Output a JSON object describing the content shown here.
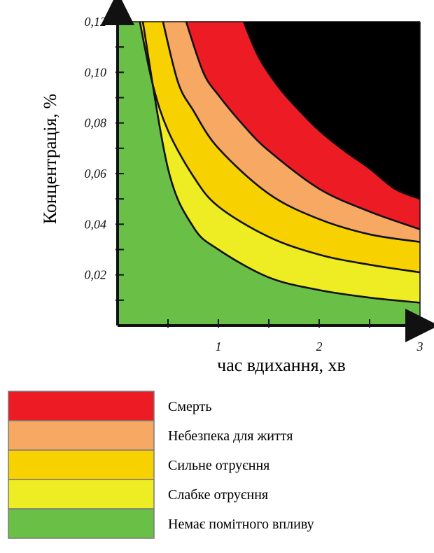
{
  "chart_data": {
    "type": "area",
    "xlabel": "час вдихання, хв",
    "ylabel": "Концентрація, %",
    "xlim": [
      0,
      3
    ],
    "ylim": [
      0,
      0.12
    ],
    "x_ticks": [
      "1",
      "2",
      "3"
    ],
    "y_ticks": [
      "0,02",
      "0,04",
      "0,06",
      "0,08",
      "0,10",
      "0,12"
    ],
    "x_tick_values": [
      1,
      2,
      3
    ],
    "y_tick_values": [
      0.02,
      0.04,
      0.06,
      0.08,
      0.1,
      0.12
    ],
    "x_minor_step": 0.5,
    "y_minor_step": 0.01,
    "boundaries": [
      {
        "x": [
          0.25,
          0.5,
          0.75,
          1.0,
          1.5,
          2.0,
          2.5,
          3.0
        ],
        "y": [
          0.12,
          0.062,
          0.039,
          0.03,
          0.019,
          0.014,
          0.011,
          0.009
        ]
      },
      {
        "x": [
          0.22,
          0.35,
          0.5,
          0.75,
          1.0,
          1.5,
          2.0,
          2.5,
          3.0
        ],
        "y": [
          0.12,
          0.095,
          0.077,
          0.059,
          0.047,
          0.035,
          0.028,
          0.024,
          0.021
        ]
      },
      {
        "x": [
          0.45,
          0.6,
          0.75,
          1.0,
          1.5,
          2.0,
          2.5,
          3.0
        ],
        "y": [
          0.12,
          0.096,
          0.085,
          0.07,
          0.052,
          0.042,
          0.036,
          0.033
        ]
      },
      {
        "x": [
          0.68,
          0.85,
          1.0,
          1.25,
          1.5,
          2.0,
          2.5,
          3.0
        ],
        "y": [
          0.12,
          0.1,
          0.091,
          0.079,
          0.069,
          0.054,
          0.045,
          0.038
        ]
      },
      {
        "x": [
          1.25,
          1.4,
          1.6,
          1.8,
          2.0,
          2.25,
          2.5,
          2.75,
          3.0
        ],
        "y": [
          0.12,
          0.106,
          0.094,
          0.085,
          0.077,
          0.069,
          0.062,
          0.054,
          0.05
        ]
      }
    ],
    "categories": [
      "Смерть",
      "Небезпека для життя",
      "Сильне отруєння",
      "Слабке отруєння",
      "Немає помітного впливу"
    ],
    "colors": [
      "#ed1c24",
      "#f7a862",
      "#f7d100",
      "#eeec22",
      "#6abf47"
    ],
    "grid": false
  }
}
